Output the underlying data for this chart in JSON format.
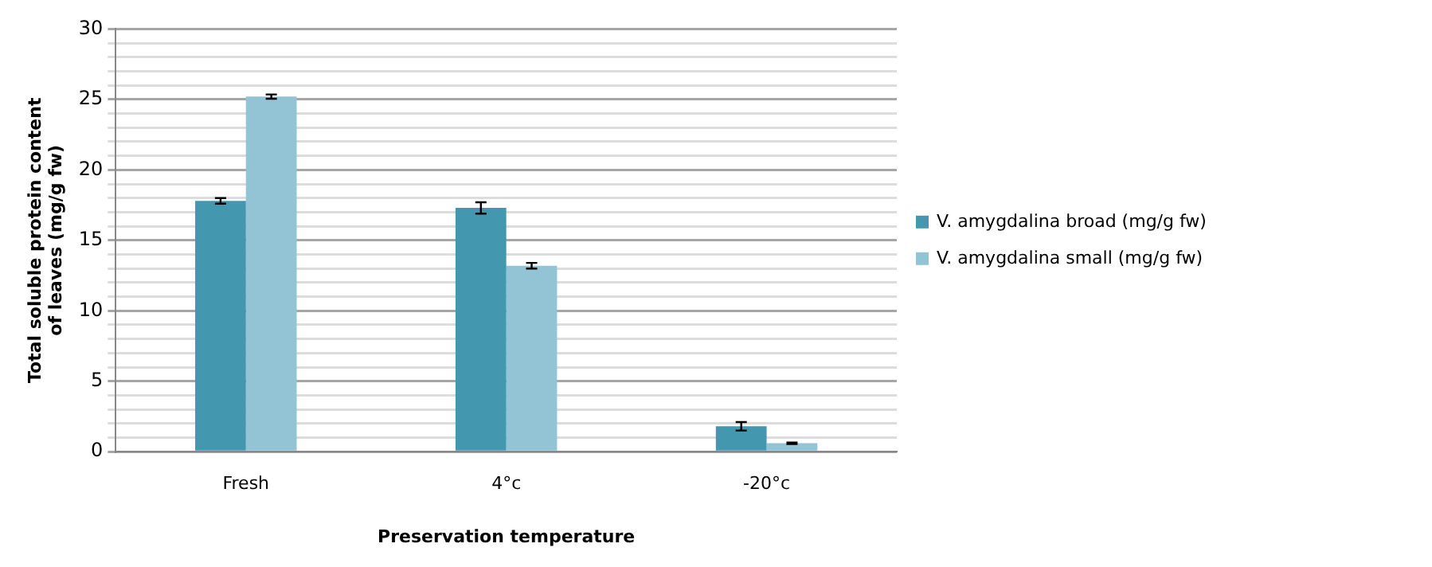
{
  "chart_data": {
    "type": "bar",
    "xlabel": "Preservation temperature",
    "ylabel": "Total soluble protein content of leaves (mg/g fw)",
    "categories": [
      "Fresh",
      "4°c",
      "-20°c"
    ],
    "series": [
      {
        "name": "V. amygdalina broad (mg/g fw)",
        "color": "#4398b0",
        "values": [
          17.8,
          17.3,
          1.8
        ],
        "errors": [
          0.2,
          0.4,
          0.3
        ]
      },
      {
        "name": "V. amygdalina small (mg/g fw)",
        "color": "#93c4d5",
        "values": [
          25.2,
          13.2,
          0.6
        ],
        "errors": [
          0.15,
          0.2,
          0.05
        ]
      }
    ],
    "ylim": [
      0,
      30
    ],
    "yticks": [
      0,
      {
        "value": 1,
        "label": null
      },
      {
        "value": 2,
        "label": null
      },
      {
        "value": 3,
        "label": null
      },
      {
        "value": 4,
        "label": null
      },
      5,
      {
        "value": 6,
        "label": null
      },
      {
        "value": 7,
        "label": null
      },
      {
        "value": 8,
        "label": null
      },
      {
        "value": 9,
        "label": null
      },
      10,
      {
        "value": 11,
        "label": null
      },
      {
        "value": 12,
        "label": null
      },
      {
        "value": 13,
        "label": null
      },
      {
        "value": 14,
        "label": null
      },
      15,
      {
        "value": 16,
        "label": null
      },
      {
        "value": 17,
        "label": null
      },
      {
        "value": 18,
        "label": null
      },
      {
        "value": 19,
        "label": null
      },
      20,
      {
        "value": 21,
        "label": null
      },
      {
        "value": 22,
        "label": null
      },
      {
        "value": 23,
        "label": null
      },
      {
        "value": 24,
        "label": null
      },
      25,
      {
        "value": 26,
        "label": null
      },
      {
        "value": 27,
        "label": null
      },
      {
        "value": 28,
        "label": null
      },
      {
        "value": 29,
        "label": null
      },
      30
    ],
    "grid": "y",
    "legend": "right"
  }
}
